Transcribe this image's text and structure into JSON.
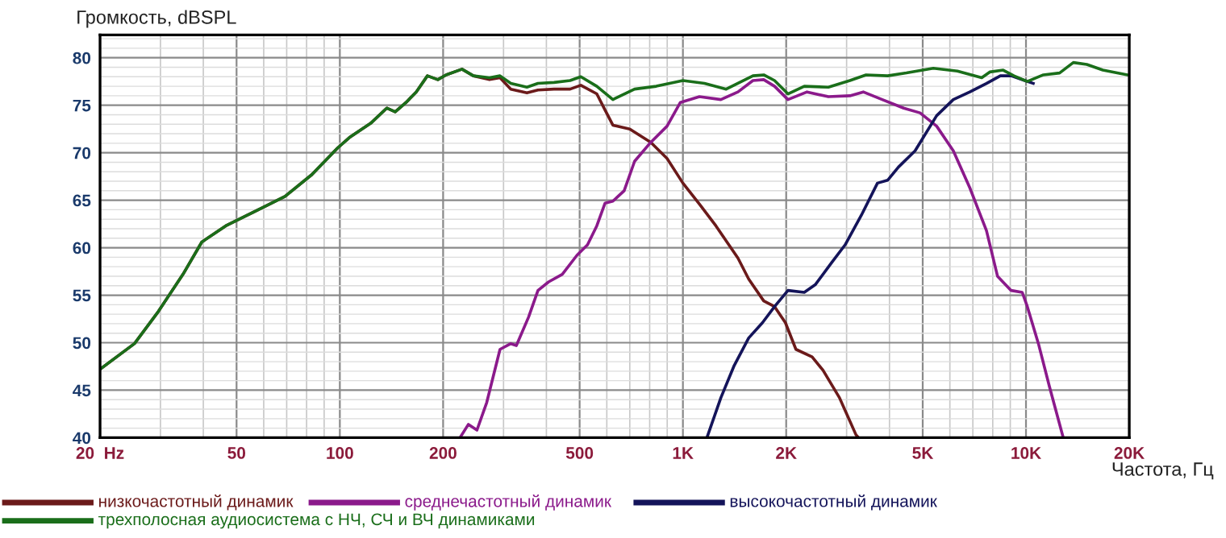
{
  "chart_data": {
    "type": "line",
    "xlabel": "Частота, Гц",
    "ylabel": "Громкость, dBSPL",
    "log": "x",
    "xlim": [
      20,
      20000
    ],
    "ylim": [
      40,
      82.4
    ],
    "xticks": [
      {
        "value": 20,
        "label": "20  Hz"
      },
      50,
      100,
      200,
      500,
      {
        "value": 1000,
        "label": "1K"
      },
      {
        "value": 2000,
        "label": "2K"
      },
      {
        "value": 5000,
        "label": "5K"
      },
      {
        "value": 10000,
        "label": "10K"
      },
      {
        "value": 20000,
        "label": "20K"
      }
    ],
    "yticks": [
      40,
      45,
      50,
      55,
      60,
      65,
      70,
      75,
      80
    ],
    "grid": true,
    "legend": "bottom",
    "marker": "none",
    "line_style": "solid",
    "series": [
      {
        "name": "низкочастотный динамик",
        "color": "#6b1a1a",
        "x": [
          20,
          25.2,
          29.6,
          34.9,
          39.6,
          46.5,
          55.7,
          69.2,
          82.9,
          98.5,
          106.6,
          123,
          137,
          145,
          156,
          167,
          180,
          193,
          204,
          227,
          245,
          273,
          293,
          315,
          351,
          378,
          421,
          469,
          504,
          561,
          593,
          625,
          700,
          806,
          899,
          1000,
          1117,
          1248,
          1447,
          1555,
          1720,
          1850,
          1990,
          2135,
          2380,
          2560,
          2860,
          3195,
          3250
        ],
        "values": [
          47.2,
          49.9,
          53.3,
          57.2,
          60.6,
          62.3,
          63.7,
          65.4,
          67.7,
          70.5,
          71.6,
          73.1,
          74.7,
          74.3,
          75.3,
          76.4,
          78.1,
          77.7,
          78.2,
          78.8,
          78.1,
          77.7,
          77.9,
          76.7,
          76.3,
          76.6,
          76.7,
          76.7,
          77.1,
          76.2,
          74.5,
          72.9,
          72.5,
          71.1,
          69.4,
          66.8,
          64.6,
          62.3,
          58.9,
          56.7,
          54.4,
          53.8,
          52.1,
          49.3,
          48.5,
          47.1,
          44.2,
          40.3,
          40
        ]
      },
      {
        "name": "среднечастотный динамик",
        "color": "#8b1a8b",
        "x": [
          224,
          237,
          251,
          268,
          293,
          315,
          327,
          355,
          378,
          406,
          445,
          491,
          527,
          561,
          593,
          625,
          674,
          723,
          806,
          899,
          983,
          1117,
          1290,
          1447,
          1600,
          1720,
          1850,
          2024,
          2300,
          2655,
          3067,
          3355,
          3810,
          4400,
          4910,
          5490,
          6140,
          6860,
          7670,
          8260,
          9050,
          9750,
          10090,
          10870,
          11700,
          12840
        ],
        "values": [
          40,
          41.4,
          40.8,
          43.7,
          49.3,
          49.9,
          49.7,
          52.7,
          55.5,
          56.4,
          57.2,
          59.2,
          60.3,
          62.3,
          64.7,
          64.9,
          66,
          69.1,
          71.1,
          72.8,
          75.3,
          75.9,
          75.6,
          76.4,
          77.6,
          77.7,
          77,
          75.6,
          76.4,
          75.9,
          76,
          76.4,
          75.6,
          74.7,
          74.2,
          72.8,
          70.2,
          66.3,
          61.8,
          57,
          55.5,
          55.3,
          53.8,
          49.9,
          45.4,
          40
        ]
      },
      {
        "name": "высокочастотный динамик",
        "color": "#14145a",
        "x": [
          1175,
          1290,
          1411,
          1555,
          1705,
          1850,
          2024,
          2258,
          2430,
          2710,
          2970,
          3310,
          3690,
          3950,
          4250,
          4750,
          5490,
          6140,
          6860,
          7670,
          8420,
          9050,
          9920,
          10500
        ],
        "values": [
          40,
          44.2,
          47.6,
          50.5,
          52.1,
          53.8,
          55.5,
          55.3,
          56.1,
          58.4,
          60.3,
          63.4,
          66.8,
          67.1,
          68.5,
          70.2,
          73.9,
          75.6,
          76.4,
          77.3,
          78.1,
          78.1,
          77.6,
          77.3
        ]
      },
      {
        "name": "трехполосная аудиосистема с НЧ, СЧ и ВЧ динамиками",
        "color": "#1a6e1a",
        "x": [
          20,
          25.2,
          29.6,
          34.9,
          39.6,
          46.5,
          55.7,
          69.2,
          82.9,
          98.5,
          106.6,
          123,
          137,
          145,
          156,
          167,
          180,
          193,
          204,
          227,
          245,
          273,
          293,
          315,
          351,
          378,
          421,
          469,
          504,
          561,
          625,
          723,
          836,
          1000,
          1156,
          1337,
          1600,
          1720,
          1850,
          2024,
          2258,
          2655,
          3067,
          3418,
          3950,
          4481,
          5368,
          6310,
          7430,
          7840,
          8580,
          9220,
          10090,
          11240,
          12530,
          13740,
          15040,
          16750,
          19700
        ],
        "values": [
          47.2,
          49.9,
          53.3,
          57.2,
          60.6,
          62.3,
          63.7,
          65.4,
          67.7,
          70.5,
          71.6,
          73.1,
          74.7,
          74.3,
          75.3,
          76.4,
          78.1,
          77.7,
          78.2,
          78.8,
          78.1,
          77.9,
          78.1,
          77.3,
          76.9,
          77.3,
          77.4,
          77.6,
          78,
          77,
          75.6,
          76.7,
          77,
          77.6,
          77.3,
          76.7,
          78.1,
          78.2,
          77.6,
          76.2,
          77,
          76.9,
          77.6,
          78.2,
          78.1,
          78.4,
          78.9,
          78.6,
          77.9,
          78.5,
          78.7,
          78.1,
          77.5,
          78.2,
          78.4,
          79.5,
          79.3,
          78.7,
          78.2
        ]
      }
    ]
  }
}
